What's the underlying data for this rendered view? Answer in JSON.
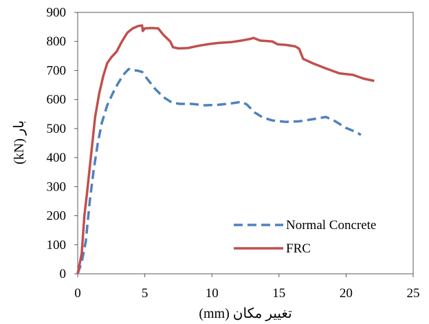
{
  "chart_data": {
    "type": "line",
    "title": "",
    "xlabel": "تغییر مکان (mm)",
    "ylabel": "بار (kN)",
    "xlim": [
      0,
      25
    ],
    "ylim": [
      0,
      900
    ],
    "x_ticks": [
      "0",
      "5",
      "10",
      "15",
      "20",
      "25"
    ],
    "y_ticks": [
      "0",
      "100",
      "200",
      "300",
      "400",
      "500",
      "600",
      "700",
      "800",
      "900"
    ],
    "grid": false,
    "legend_position": "bottom-right",
    "series": [
      {
        "name": "Normal Concrete",
        "color": "#4f81bd",
        "style": "dashed",
        "points": [
          [
            0.0,
            0
          ],
          [
            0.3,
            40
          ],
          [
            0.6,
            110
          ],
          [
            0.9,
            250
          ],
          [
            1.2,
            360
          ],
          [
            1.5,
            450
          ],
          [
            1.8,
            520
          ],
          [
            2.2,
            580
          ],
          [
            2.6,
            620
          ],
          [
            3.0,
            655
          ],
          [
            3.4,
            685
          ],
          [
            3.8,
            705
          ],
          [
            4.1,
            700
          ],
          [
            4.4,
            700
          ],
          [
            4.8,
            695
          ],
          [
            5.2,
            670
          ],
          [
            5.8,
            635
          ],
          [
            6.4,
            608
          ],
          [
            7.0,
            590
          ],
          [
            7.6,
            585
          ],
          [
            8.5,
            585
          ],
          [
            9.5,
            580
          ],
          [
            10.5,
            582
          ],
          [
            11.5,
            587
          ],
          [
            12.2,
            592
          ],
          [
            12.6,
            583
          ],
          [
            13.2,
            555
          ],
          [
            13.8,
            538
          ],
          [
            14.5,
            528
          ],
          [
            15.5,
            523
          ],
          [
            16.5,
            525
          ],
          [
            17.5,
            532
          ],
          [
            18.5,
            540
          ],
          [
            19.2,
            525
          ],
          [
            20.0,
            502
          ],
          [
            20.8,
            487
          ],
          [
            21.1,
            478
          ]
        ]
      },
      {
        "name": "FRC",
        "color": "#c0504d",
        "style": "solid",
        "points": [
          [
            0.0,
            0
          ],
          [
            0.3,
            70
          ],
          [
            0.5,
            200
          ],
          [
            0.7,
            280
          ],
          [
            1.0,
            410
          ],
          [
            1.3,
            540
          ],
          [
            1.6,
            620
          ],
          [
            1.9,
            680
          ],
          [
            2.2,
            725
          ],
          [
            2.5,
            745
          ],
          [
            2.9,
            765
          ],
          [
            3.3,
            800
          ],
          [
            3.7,
            830
          ],
          [
            4.1,
            845
          ],
          [
            4.5,
            853
          ],
          [
            4.8,
            855
          ],
          [
            4.85,
            836
          ],
          [
            5.0,
            845
          ],
          [
            5.5,
            846
          ],
          [
            6.0,
            845
          ],
          [
            6.4,
            822
          ],
          [
            6.9,
            800
          ],
          [
            7.1,
            780
          ],
          [
            7.5,
            776
          ],
          [
            8.2,
            777
          ],
          [
            9.0,
            785
          ],
          [
            9.8,
            791
          ],
          [
            10.5,
            795
          ],
          [
            11.5,
            798
          ],
          [
            12.2,
            803
          ],
          [
            12.8,
            808
          ],
          [
            13.1,
            812
          ],
          [
            13.6,
            803
          ],
          [
            14.5,
            800
          ],
          [
            14.9,
            790
          ],
          [
            15.5,
            788
          ],
          [
            16.2,
            783
          ],
          [
            16.5,
            775
          ],
          [
            16.8,
            740
          ],
          [
            17.5,
            725
          ],
          [
            18.5,
            707
          ],
          [
            19.5,
            690
          ],
          [
            20.5,
            685
          ],
          [
            21.3,
            672
          ],
          [
            22.1,
            664
          ]
        ]
      }
    ]
  }
}
